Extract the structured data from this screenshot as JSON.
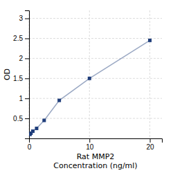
{
  "chart_data": {
    "type": "line",
    "x": [
      0.156,
      0.3125,
      0.625,
      1.25,
      2.5,
      5,
      10,
      20
    ],
    "series": [
      {
        "color": "#1f3d7a",
        "marker": "square",
        "values": [
          0.1,
          0.13,
          0.18,
          0.25,
          0.45,
          0.95,
          1.5,
          2.45
        ]
      }
    ],
    "xlabel": [
      "Rat MMP2",
      "Concentration (ng/ml)"
    ],
    "ylabel": "OD",
    "xlim": [
      0,
      22
    ],
    "xticks": [
      0,
      10,
      20
    ],
    "ylim": [
      0,
      3.2
    ],
    "yticks": [
      0.5,
      1,
      1.5,
      2,
      2.5,
      3
    ],
    "grid": true
  }
}
